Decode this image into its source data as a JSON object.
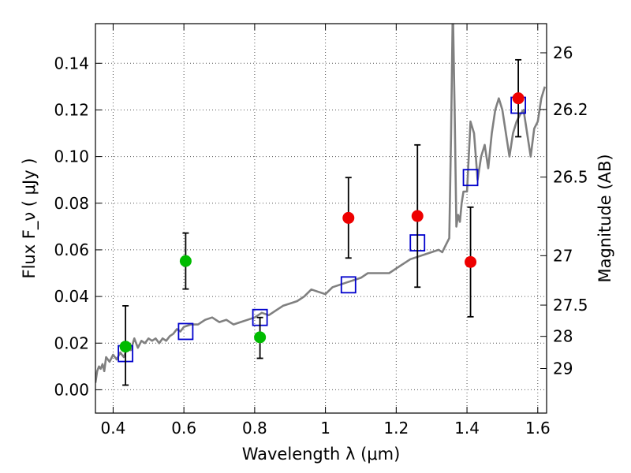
{
  "chart_data": {
    "type": "scatter",
    "title": "",
    "xlabel": "Wavelength  λ (μm)",
    "ylabel": "Flux  F_ν  ( μJy )",
    "y2label": "Magnitude (AB)",
    "xlim": [
      0.35,
      1.625
    ],
    "ylim": [
      -0.01,
      0.157
    ],
    "grid": true,
    "xticks": [
      0.4,
      0.6,
      0.8,
      1.0,
      1.2,
      1.4,
      1.6
    ],
    "xticklabels": [
      "0.4",
      "0.6",
      "0.8",
      "1",
      "1.2",
      "1.4",
      "1.6"
    ],
    "yticks": [
      0.0,
      0.02,
      0.04,
      0.06,
      0.08,
      0.1,
      0.12,
      0.14
    ],
    "yticklabels": [
      "0.00",
      "0.02",
      "0.04",
      "0.06",
      "0.08",
      "0.10",
      "0.12",
      "0.14"
    ],
    "y2ticks": [
      {
        "label": "26",
        "flux": 0.1445
      },
      {
        "label": "26.2",
        "flux": 0.1202
      },
      {
        "label": "26.5",
        "flux": 0.0912
      },
      {
        "label": "27",
        "flux": 0.0575
      },
      {
        "label": "27.5",
        "flux": 0.0363
      },
      {
        "label": "28",
        "flux": 0.0229
      },
      {
        "label": "29",
        "flux": 0.0091
      }
    ],
    "series": [
      {
        "kind": "line",
        "color": "#808080",
        "x": [
          0.35,
          0.355,
          0.36,
          0.365,
          0.37,
          0.375,
          0.38,
          0.39,
          0.4,
          0.41,
          0.42,
          0.43,
          0.44,
          0.45,
          0.46,
          0.47,
          0.48,
          0.49,
          0.5,
          0.51,
          0.52,
          0.53,
          0.54,
          0.55,
          0.56,
          0.57,
          0.58,
          0.59,
          0.6,
          0.62,
          0.64,
          0.66,
          0.68,
          0.7,
          0.72,
          0.74,
          0.76,
          0.78,
          0.8,
          0.82,
          0.84,
          0.86,
          0.88,
          0.9,
          0.92,
          0.94,
          0.96,
          0.98,
          1.0,
          1.02,
          1.04,
          1.06,
          1.08,
          1.1,
          1.12,
          1.14,
          1.16,
          1.18,
          1.2,
          1.22,
          1.24,
          1.26,
          1.28,
          1.3,
          1.32,
          1.33,
          1.34,
          1.35,
          1.355,
          1.36,
          1.365,
          1.37,
          1.375,
          1.38,
          1.385,
          1.39,
          1.4,
          1.41,
          1.42,
          1.43,
          1.44,
          1.45,
          1.46,
          1.47,
          1.48,
          1.49,
          1.5,
          1.51,
          1.52,
          1.53,
          1.54,
          1.55,
          1.56,
          1.57,
          1.58,
          1.59,
          1.6,
          1.61,
          1.62
        ],
        "y": [
          0.003,
          0.008,
          0.01,
          0.009,
          0.011,
          0.008,
          0.014,
          0.012,
          0.015,
          0.013,
          0.016,
          0.014,
          0.018,
          0.017,
          0.022,
          0.018,
          0.021,
          0.02,
          0.022,
          0.021,
          0.022,
          0.02,
          0.022,
          0.021,
          0.023,
          0.024,
          0.026,
          0.025,
          0.027,
          0.028,
          0.028,
          0.03,
          0.031,
          0.029,
          0.03,
          0.028,
          0.029,
          0.03,
          0.031,
          0.033,
          0.032,
          0.034,
          0.036,
          0.037,
          0.038,
          0.04,
          0.043,
          0.042,
          0.041,
          0.044,
          0.045,
          0.046,
          0.047,
          0.048,
          0.05,
          0.05,
          0.05,
          0.05,
          0.052,
          0.054,
          0.056,
          0.057,
          0.058,
          0.059,
          0.06,
          0.059,
          0.062,
          0.065,
          0.11,
          0.165,
          0.12,
          0.07,
          0.075,
          0.072,
          0.08,
          0.085,
          0.085,
          0.115,
          0.11,
          0.09,
          0.1,
          0.105,
          0.095,
          0.11,
          0.12,
          0.125,
          0.12,
          0.11,
          0.1,
          0.11,
          0.115,
          0.118,
          0.12,
          0.11,
          0.1,
          0.112,
          0.115,
          0.125,
          0.13
        ]
      },
      {
        "kind": "squares",
        "color": "#0000cc",
        "x": [
          0.435,
          0.605,
          0.815,
          1.065,
          1.26,
          1.41,
          1.545
        ],
        "y": [
          0.0155,
          0.025,
          0.031,
          0.045,
          0.063,
          0.091,
          0.122
        ]
      },
      {
        "kind": "points",
        "color": "#00bb00",
        "x": [
          0.435,
          0.605,
          0.815
        ],
        "y": [
          0.0185,
          0.0552,
          0.0225
        ],
        "err_low": [
          0.0165,
          0.012,
          0.009
        ],
        "err_high": [
          0.0175,
          0.012,
          0.0085
        ]
      },
      {
        "kind": "points",
        "color": "#ee0000",
        "x": [
          1.065,
          1.26,
          1.41,
          1.545
        ],
        "y": [
          0.0737,
          0.0745,
          0.0548,
          0.125
        ],
        "err_low": [
          0.0172,
          0.0305,
          0.0235,
          0.0165
        ],
        "err_high": [
          0.0173,
          0.0305,
          0.0235,
          0.0165
        ]
      }
    ]
  }
}
